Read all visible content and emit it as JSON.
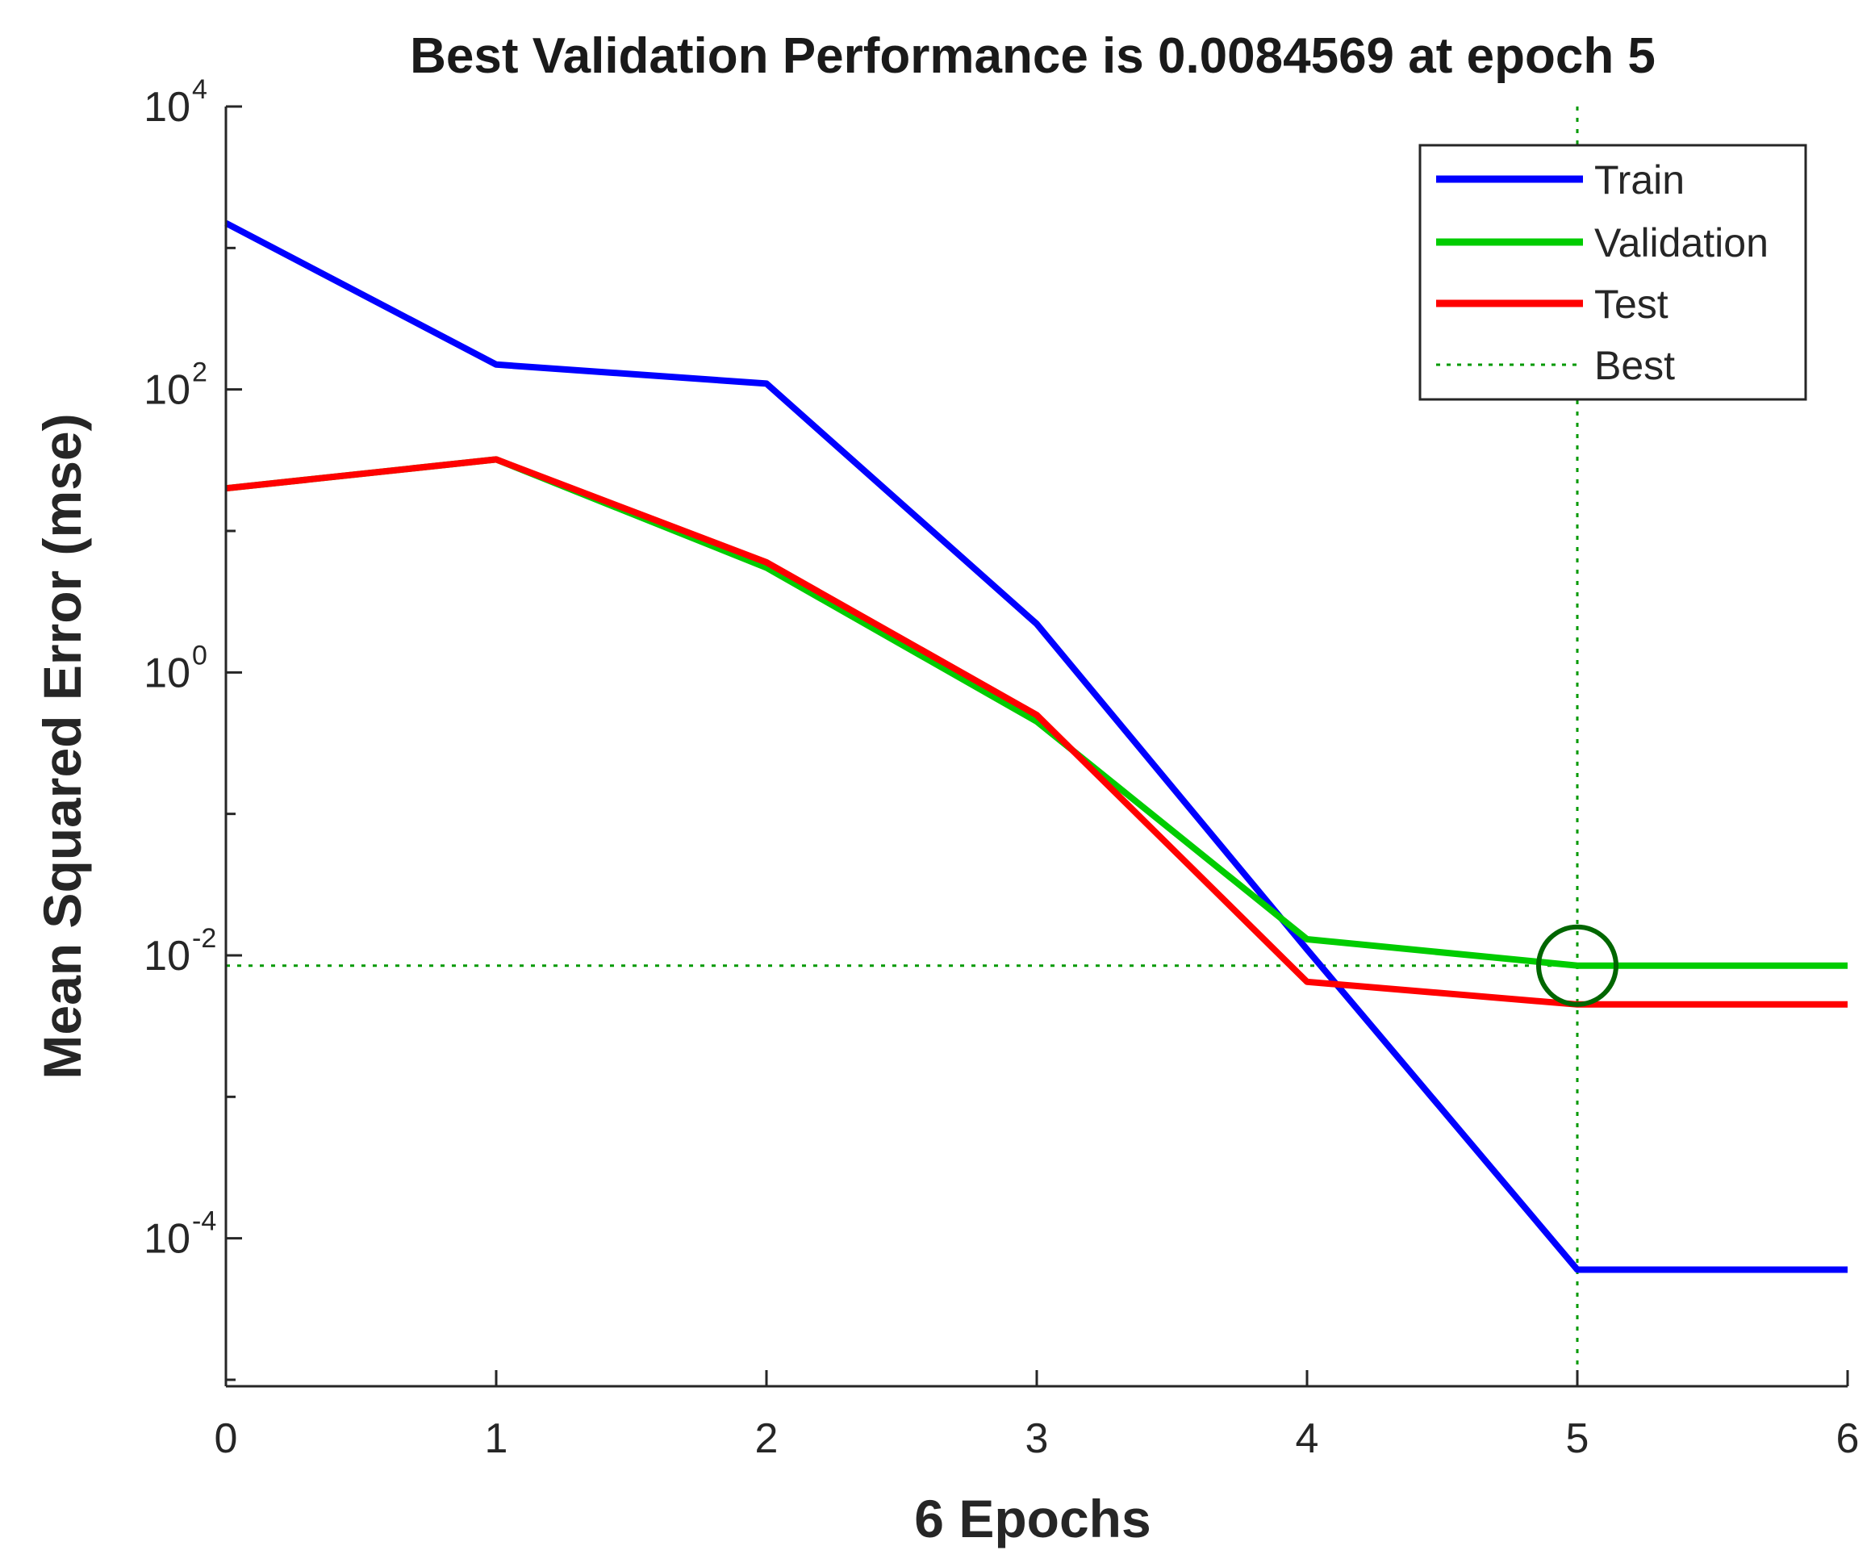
{
  "chart_data": {
    "type": "line",
    "title": "Best Validation Performance is 0.0084569 at epoch 5",
    "xlabel": "6 Epochs",
    "ylabel": "Mean Squared Error  (mse)",
    "yscale": "log",
    "xlim": [
      0,
      6
    ],
    "ylim": [
      9e-06,
      10000
    ],
    "xticks": [
      "0",
      "1",
      "2",
      "3",
      "4",
      "5",
      "6"
    ],
    "yticks": [
      {
        "value": 10000,
        "base": "10",
        "exp": "4"
      },
      {
        "value": 100,
        "base": "10",
        "exp": "2"
      },
      {
        "value": 1,
        "base": "10",
        "exp": "0"
      },
      {
        "value": 0.01,
        "base": "10",
        "exp": "-2"
      },
      {
        "value": 0.0001,
        "base": "10",
        "exp": "-4"
      }
    ],
    "x": [
      0,
      1,
      2,
      3,
      4,
      5,
      6
    ],
    "series": [
      {
        "name": "Train",
        "color": "#0000ff",
        "values": [
          1500,
          150,
          110,
          2.2,
          0.011,
          6e-05,
          6e-05
        ]
      },
      {
        "name": "Validation",
        "color": "#00cc00",
        "values": [
          20,
          32,
          5.5,
          0.45,
          0.013,
          0.0084569,
          0.0084569
        ]
      },
      {
        "name": "Test",
        "color": "#ff0000",
        "values": [
          20,
          32,
          6.0,
          0.5,
          0.0065,
          0.0045,
          0.0045
        ]
      }
    ],
    "best": {
      "name": "Best",
      "epoch": 5,
      "value": 0.0084569,
      "color": "#009900"
    },
    "legend": {
      "position": "top-right",
      "entries": [
        "Train",
        "Validation",
        "Test",
        "Best"
      ]
    }
  }
}
